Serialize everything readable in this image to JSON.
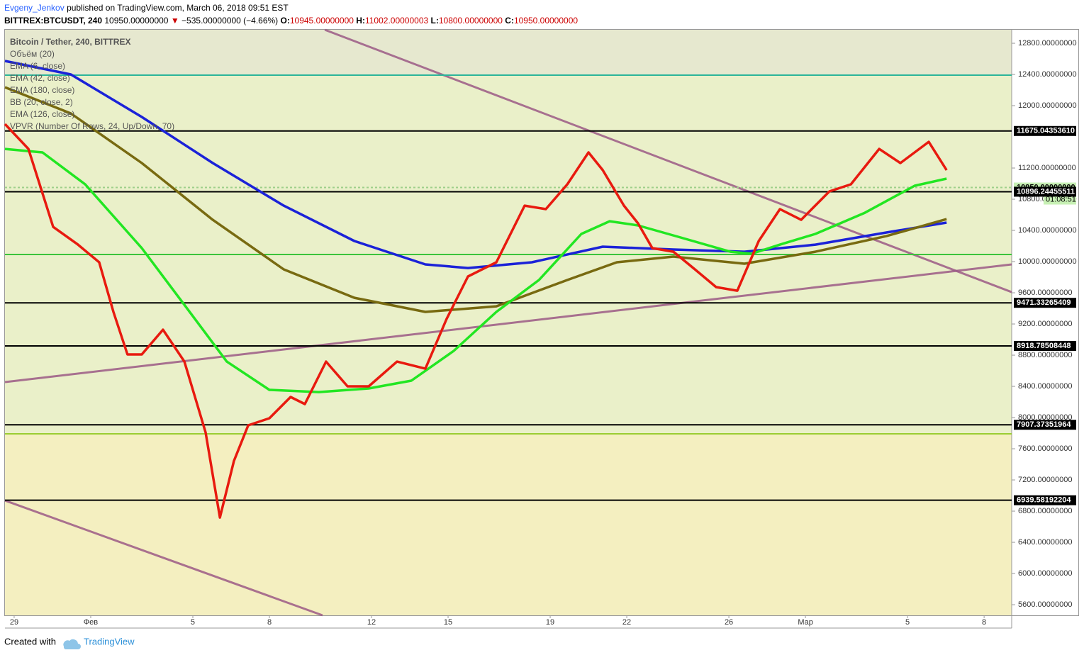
{
  "header": {
    "author": "Evgeny_Jenkov",
    "published": "published on TradingView.com, March 06, 2018 09:51 EST",
    "symbol": "BITTREX:BTCUSDT, 240",
    "last": "10950.00000000",
    "arrow": "▼",
    "change": "−535.00000000 (−4.66%)",
    "ohlc": [
      {
        "label": "O:",
        "value": "10945.00000000"
      },
      {
        "label": "H:",
        "value": "11002.00000003"
      },
      {
        "label": "L:",
        "value": "10800.00000000"
      },
      {
        "label": "C:",
        "value": "10950.00000000"
      }
    ]
  },
  "legend": [
    "Bitcoin / Tether, 240, BITTREX",
    "Объём (20)",
    "EMA (6, close)",
    "EMA (42, close)",
    "EMA (180, close)",
    "BB (20, close, 2)",
    "EMA (126, close)",
    "VPVR (Number Of Rows, 24, Up/Down, 70)"
  ],
  "footer": {
    "created": "Created with",
    "brand": "TradingView"
  },
  "chart_data": {
    "type": "line",
    "xlim": [
      -0.36,
      39.08
    ],
    "ylim": [
      5464,
      12973
    ],
    "xticks": [
      {
        "value": 0,
        "label": "29"
      },
      {
        "value": 3,
        "label": "Фев"
      },
      {
        "value": 7,
        "label": "5"
      },
      {
        "value": 10,
        "label": "8"
      },
      {
        "value": 14,
        "label": "12"
      },
      {
        "value": 17,
        "label": "15"
      },
      {
        "value": 21,
        "label": "19"
      },
      {
        "value": 24,
        "label": "22"
      },
      {
        "value": 28,
        "label": "26"
      },
      {
        "value": 31,
        "label": "Мар"
      },
      {
        "value": 35,
        "label": "5"
      },
      {
        "value": 38,
        "label": "8"
      }
    ],
    "yticks": [
      {
        "value": 12800,
        "label": "12800.00000000"
      },
      {
        "value": 12400,
        "label": "12400.00000000"
      },
      {
        "value": 12000,
        "label": "12000.00000000"
      },
      {
        "value": 11200,
        "label": "11200.00000000"
      },
      {
        "value": 10800,
        "label": "10800.00000000"
      },
      {
        "value": 10400,
        "label": "10400.00000000"
      },
      {
        "value": 10000,
        "label": "10000.00000000"
      },
      {
        "value": 9600,
        "label": "9600.00000000"
      },
      {
        "value": 9200,
        "label": "9200.00000000"
      },
      {
        "value": 8800,
        "label": "8800.00000000"
      },
      {
        "value": 8400,
        "label": "8400.00000000"
      },
      {
        "value": 8000,
        "label": "8000.00000000"
      },
      {
        "value": 7600,
        "label": "7600.00000000"
      },
      {
        "value": 7200,
        "label": "7200.00000000"
      },
      {
        "value": 6800,
        "label": "6800.00000000"
      },
      {
        "value": 6400,
        "label": "6400.00000000"
      },
      {
        "value": 6000,
        "label": "6000.00000000"
      },
      {
        "value": 5600,
        "label": "5600.00000000"
      }
    ],
    "series": [
      {
        "name": "EMA (180, close)",
        "color": "#1b22d8",
        "x": [
          -0.36,
          2.22,
          5,
          7.78,
          10.56,
          13.33,
          16.11,
          17.78,
          20.28,
          23.06,
          25.83,
          28.61,
          31.39,
          34.17,
          36.53
        ],
        "values": [
          12573,
          12400,
          11855,
          11264,
          10718,
          10264,
          9964,
          9918,
          9991,
          10191,
          10155,
          10127,
          10218,
          10373,
          10500
        ]
      },
      {
        "name": "EMA (126, close)",
        "color": "#786a10",
        "x": [
          -0.36,
          2.22,
          5,
          7.78,
          10.56,
          13.33,
          16.11,
          18.89,
          21.67,
          23.61,
          25.83,
          28.61,
          31.39,
          34.17,
          36.53
        ],
        "values": [
          12236,
          11900,
          11264,
          10536,
          9900,
          9536,
          9355,
          9427,
          9764,
          9991,
          10064,
          9973,
          10127,
          10327,
          10545
        ]
      },
      {
        "name": "EMA (42, close)",
        "color": "#22e622",
        "x": [
          -0.36,
          1.11,
          2.78,
          5,
          6.67,
          8.33,
          10,
          11.94,
          13.89,
          15.56,
          17.22,
          18.89,
          20.56,
          22.22,
          23.33,
          24.44,
          26.11,
          28.06,
          28.89,
          30,
          31.39,
          33.33,
          35.28,
          36.53
        ],
        "values": [
          11445,
          11400,
          10991,
          10173,
          9445,
          8718,
          8355,
          8327,
          8373,
          8473,
          8855,
          9355,
          9764,
          10355,
          10518,
          10464,
          10309,
          10127,
          10100,
          10218,
          10355,
          10627,
          10973,
          11064
        ]
      },
      {
        "name": "EMA (6, close)",
        "color": "#e81a0f",
        "x": [
          -0.36,
          0.56,
          1.53,
          2.5,
          3.33,
          3.89,
          4.44,
          5,
          5.83,
          6.67,
          7.5,
          8.06,
          8.61,
          9.17,
          10,
          10.83,
          11.39,
          12.22,
          13.06,
          13.89,
          15,
          16.11,
          16.94,
          17.78,
          18.89,
          20,
          20.83,
          21.67,
          22.5,
          23.06,
          23.89,
          24.44,
          25,
          25.83,
          26.67,
          27.5,
          28.33,
          29.17,
          30,
          30.83,
          31.94,
          32.78,
          33.89,
          34.72,
          35.83,
          36.53
        ],
        "values": [
          11764,
          11445,
          10445,
          10218,
          9991,
          9355,
          8809,
          8809,
          9127,
          8718,
          7809,
          6718,
          7445,
          7900,
          7991,
          8264,
          8173,
          8718,
          8400,
          8400,
          8718,
          8627,
          9264,
          9809,
          9991,
          10718,
          10673,
          10991,
          11400,
          11173,
          10718,
          10491,
          10173,
          10127,
          9900,
          9673,
          9627,
          10264,
          10673,
          10536,
          10900,
          10991,
          11445,
          11264,
          11536,
          11173
        ]
      }
    ],
    "trendlines": [
      {
        "color": "#9c5a86",
        "x": [
          12.17,
          39.08
        ],
        "values": [
          12973,
          9609
        ]
      },
      {
        "color": "#9c5a86",
        "x": [
          -0.36,
          39.08
        ],
        "values": [
          8455,
          9964
        ]
      },
      {
        "color": "#9c5a86",
        "x": [
          -0.36,
          12.08
        ],
        "values": [
          6936,
          5464
        ]
      }
    ],
    "levels": [
      {
        "value": 12391,
        "color": "#2bb59a"
      },
      {
        "value": 11675.0435361,
        "label": "11675.04353610",
        "color": "#000000"
      },
      {
        "value": 10950,
        "label": "10950.00000000",
        "color": "#9ecf8a"
      },
      {
        "value": 10896.24455511,
        "label": "10896.24455511",
        "color": "#000000"
      },
      {
        "value": 10091,
        "color": "#3cc43c"
      },
      {
        "value": 9471.33265409,
        "label": "9471.33265409",
        "color": "#000000"
      },
      {
        "value": 8918.78508448,
        "label": "8918.78508448",
        "color": "#000000"
      },
      {
        "value": 7907.37351964,
        "label": "7907.37351964",
        "color": "#000000"
      },
      {
        "value": 7791,
        "color": "#9acd32"
      },
      {
        "value": 6939.58192204,
        "label": "6939.58192204",
        "color": "#000000"
      }
    ],
    "countdown": "01:08:51"
  }
}
